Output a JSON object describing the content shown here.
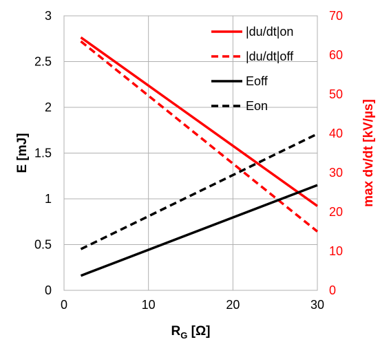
{
  "chart_data": {
    "type": "line",
    "title": "",
    "xlabel": {
      "main": "R",
      "sub": "G",
      "unit": " [Ω]"
    },
    "ylabel_left": "E [mJ]",
    "ylabel_right": "max dv/dt [kV/µs]",
    "xlim": [
      0,
      30
    ],
    "ylim_left": [
      0,
      3
    ],
    "ylim_right": [
      0,
      70
    ],
    "x_ticks": [
      "0",
      "10",
      "20",
      "30"
    ],
    "y_left_ticks": [
      "0",
      "0.5",
      "1",
      "1.5",
      "2",
      "2.5",
      "3"
    ],
    "y_right_ticks": [
      "0",
      "10",
      "20",
      "30",
      "40",
      "50",
      "60",
      "70"
    ],
    "grid": true,
    "legend_position": "top-right",
    "colors": {
      "red": "#ff0000",
      "black": "#000000"
    },
    "series": [
      {
        "name": "|du/dt|on",
        "axis": "right",
        "color": "#ff0000",
        "dash": false,
        "points": [
          [
            2,
            64.5
          ],
          [
            30,
            21.5
          ]
        ]
      },
      {
        "name": "|du/dt|off",
        "axis": "right",
        "color": "#ff0000",
        "dash": true,
        "points": [
          [
            2,
            63.5
          ],
          [
            30,
            15
          ]
        ]
      },
      {
        "name": "Eoff",
        "axis": "left",
        "color": "#000000",
        "dash": false,
        "points": [
          [
            2,
            0.16
          ],
          [
            30,
            1.15
          ]
        ]
      },
      {
        "name": "Eon",
        "axis": "left",
        "color": "#000000",
        "dash": true,
        "points": [
          [
            2,
            0.45
          ],
          [
            30,
            1.71
          ]
        ]
      }
    ]
  }
}
